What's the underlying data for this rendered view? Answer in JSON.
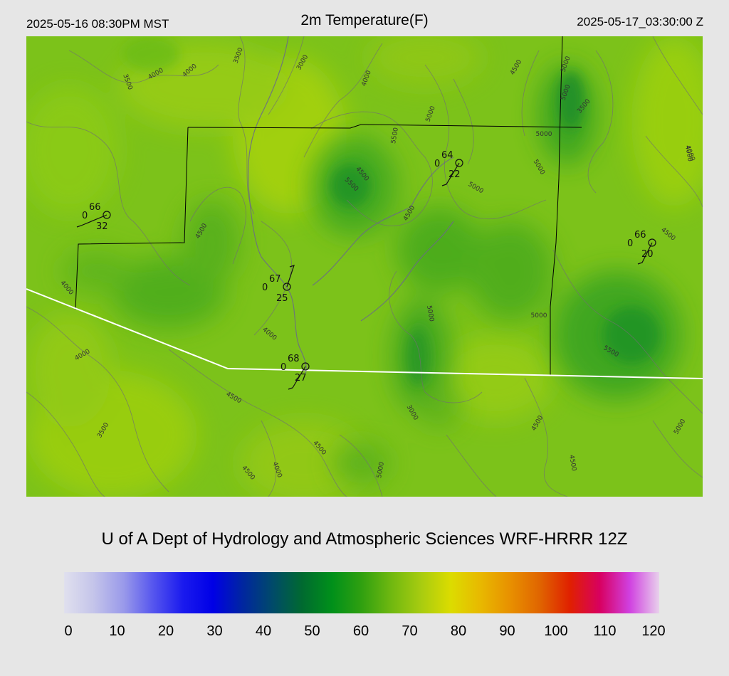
{
  "header": {
    "local_time": "2025-05-16 08:30PM MST",
    "title": "2m Temperature(F)",
    "utc_time": "2025-05-17_03:30:00 Z"
  },
  "credit": "U of A Dept of Hydrology and Atmospheric Sciences WRF-HRRR 12Z",
  "colorbar": {
    "ticks": [
      "0",
      "10",
      "20",
      "30",
      "40",
      "50",
      "60",
      "70",
      "80",
      "90",
      "100",
      "110",
      "120"
    ],
    "colors": [
      "#e0e0ee",
      "#c4c4ea",
      "#9a9aea",
      "#5555ee",
      "#1a1aee",
      "#0000e6",
      "#0026a0",
      "#004a6a",
      "#006a30",
      "#00901a",
      "#30a010",
      "#70b810",
      "#a8cc10",
      "#dcdc00",
      "#e8b800",
      "#e89000",
      "#e06400",
      "#e02000",
      "#d80060",
      "#d040e0",
      "#e8d0ec"
    ]
  },
  "stations": [
    {
      "temp": "66",
      "wind": "0",
      "dew": "32"
    },
    {
      "temp": "64",
      "wind": "0",
      "dew": "22"
    },
    {
      "temp": "66",
      "wind": "0",
      "dew": "20"
    },
    {
      "temp": "67",
      "wind": "0",
      "dew": "25"
    },
    {
      "temp": "68",
      "wind": "0",
      "dew": "27"
    }
  ],
  "contour_labels": [
    "3500",
    "4000",
    "4000",
    "3500",
    "3000",
    "4000",
    "5000",
    "4500",
    "5000",
    "5500",
    "5000",
    "5000",
    "5000",
    "5500",
    "3500",
    "4000",
    "4000",
    "4500",
    "4500",
    "4000",
    "5000",
    "4000",
    "3500",
    "4500",
    "3000",
    "4500",
    "4500",
    "4000",
    "5000",
    "4500",
    "5500",
    "5000",
    "4500",
    "5000",
    "4500",
    "5000",
    "4000",
    "4500"
  ],
  "colors": {
    "background": "#e6e6e6",
    "map_base": "#7cc21a",
    "state_border": "#ffffff",
    "county_border": "#000000"
  }
}
